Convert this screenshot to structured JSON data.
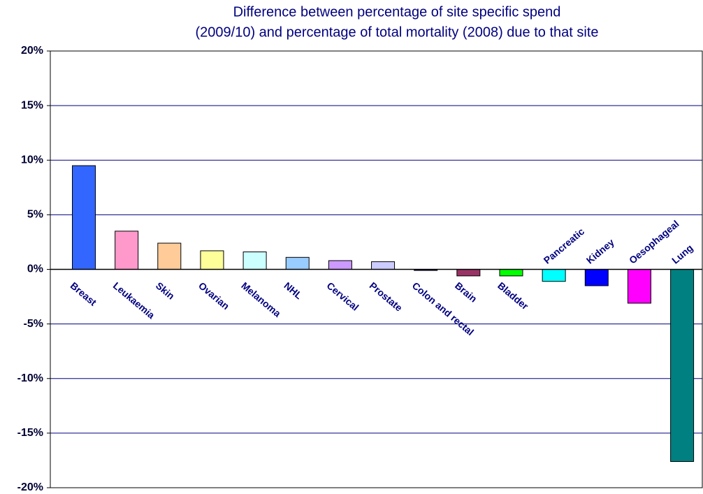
{
  "chart_data": {
    "type": "bar",
    "title": [
      "Difference between percentage of site specific spend",
      "(2009/10) and percentage of total mortality (2008) due to that site"
    ],
    "categories": [
      "Breast",
      "Leukaemia",
      "Skin",
      "Ovarian",
      "Melanoma",
      "NHL",
      "Cervical",
      "Prostate",
      "Colon and rectal",
      "Brain",
      "Bladder",
      "Pancreatic",
      "Kidney",
      "Oesophageal",
      "Lung"
    ],
    "values": [
      9.5,
      3.5,
      2.4,
      1.7,
      1.6,
      1.1,
      0.8,
      0.7,
      -0.1,
      -0.6,
      -0.6,
      -1.1,
      -1.5,
      -3.1,
      -17.6
    ],
    "colors": [
      "#3366ff",
      "#ff99cc",
      "#ffcc99",
      "#ffff99",
      "#ccffff",
      "#99ccff",
      "#cc99ff",
      "#ccccff",
      "#000080",
      "#993366",
      "#00ff00",
      "#00ffff",
      "#0000ff",
      "#ff00ff",
      "#008080"
    ],
    "ylim": [
      -20,
      20
    ],
    "yticks": [
      {
        "value": -20,
        "label": "-20%"
      },
      {
        "value": -15,
        "label": "-15%"
      },
      {
        "value": -10,
        "label": "-10%"
      },
      {
        "value": -5,
        "label": "-5%"
      },
      {
        "value": 0,
        "label": "0%"
      },
      {
        "value": 5,
        "label": "5%"
      },
      {
        "value": 10,
        "label": "10%"
      },
      {
        "value": 15,
        "label": "15%"
      },
      {
        "value": 20,
        "label": "20%"
      }
    ],
    "grid": true
  }
}
